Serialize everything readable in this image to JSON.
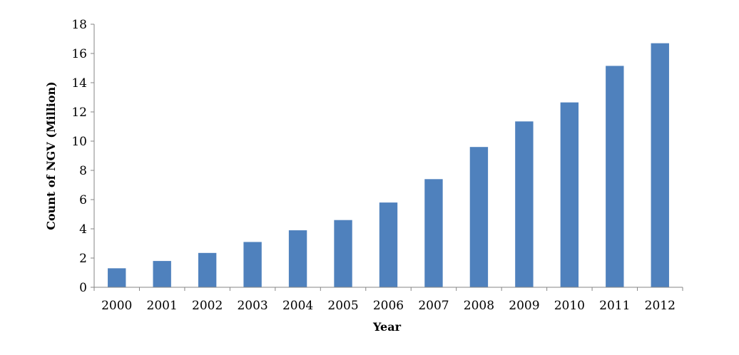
{
  "chart_data": {
    "type": "bar",
    "title": "",
    "xlabel": "Year",
    "ylabel": "Count of NGV (Million)",
    "categories": [
      "2000",
      "2001",
      "2002",
      "2003",
      "2004",
      "2005",
      "2006",
      "2007",
      "2008",
      "2009",
      "2010",
      "2011",
      "2012"
    ],
    "values": [
      1.3,
      1.8,
      2.35,
      3.1,
      3.9,
      4.6,
      5.8,
      7.4,
      9.6,
      11.35,
      12.65,
      15.15,
      16.7
    ],
    "ylim": [
      0,
      18
    ],
    "yticks": [
      0,
      2,
      4,
      6,
      8,
      10,
      12,
      14,
      16,
      18
    ],
    "grid": false,
    "legend": "none",
    "bar_color": "#4F81BD"
  }
}
